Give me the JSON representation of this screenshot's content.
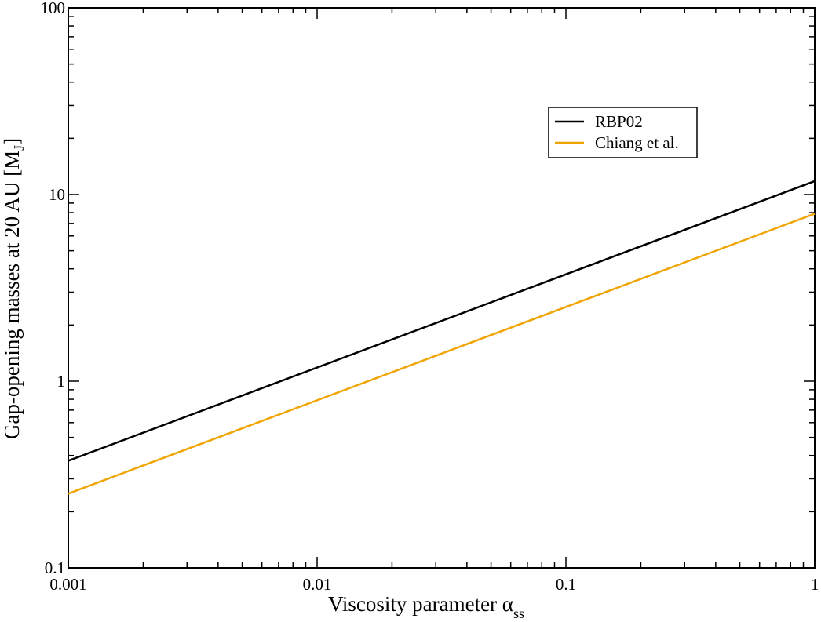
{
  "chart_data": {
    "type": "line",
    "xscale": "log",
    "yscale": "log",
    "xlim": [
      0.001,
      1
    ],
    "ylim": [
      0.1,
      100
    ],
    "xticks": [
      "0.001",
      "0.01",
      "0.1",
      "1"
    ],
    "yticks": [
      "0.1",
      "1",
      "10",
      "100"
    ],
    "xlabel": "Viscosity parameter  α",
    "xlabel_sub": "ss",
    "ylabel": "Gap-opening masses at 20 AU  [M",
    "ylabel_sub": "J",
    "ylabel_end": "]",
    "grid": false,
    "legend_position": "upper-right",
    "series": [
      {
        "name": "RBP02",
        "color": "#000000",
        "x": [
          0.001,
          1
        ],
        "y": [
          0.375,
          11.8
        ]
      },
      {
        "name": "Chiang et al.",
        "color": "#f0a400",
        "x": [
          0.001,
          1
        ],
        "y": [
          0.25,
          7.9
        ]
      }
    ]
  }
}
